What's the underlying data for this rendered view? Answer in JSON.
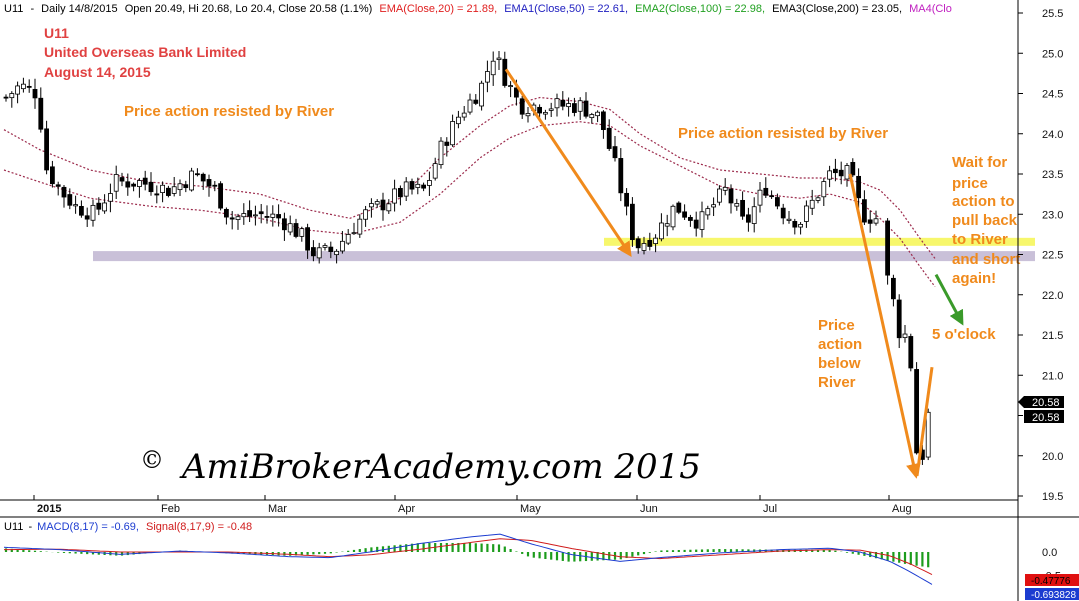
{
  "header": {
    "symbol": "U11",
    "interval": "Daily 14/8/2015",
    "ohlc": "Open 20.49, Hi 20.68, Lo 20.4, Close 20.58 (1.1%)",
    "ema20": "EMA(Close,20) = 21.89,",
    "ema50": "EMA1(Close,50) = 22.61,",
    "ema100": "EMA2(Close,100) = 22.98,",
    "ema200": "EMA3(Close,200) = 23.05,",
    "ma4": "MA4(Clo"
  },
  "title_block": {
    "ticker": "U11",
    "company": "United Overseas Bank Limited",
    "date": "August 14, 2015"
  },
  "annotations": {
    "a1": "Price action resisted by River",
    "a2": "Price action resisted by River",
    "a3": [
      "Price",
      "action",
      "below",
      "River"
    ],
    "a4": [
      "Wait for",
      "price",
      "action to",
      "pull back",
      "to River",
      "and short",
      "again!"
    ],
    "a5": "5 o'clock"
  },
  "watermark": {
    "copyright": "©",
    "text": "AmiBrokerAcademy.com   2015"
  },
  "macd_header": {
    "symbol": "U11",
    "macd": "MACD(8,17) = -0.69,",
    "signal": "Signal(8,17,9) = -0.48"
  },
  "price_labels": {
    "top": "20.58",
    "bottom": "20.58"
  },
  "macd_labels": {
    "signal": "-0.47776",
    "macd": "-0.693828"
  },
  "colors": {
    "header_ema20": "#e02020",
    "header_ema50": "#2020c0",
    "header_ema100": "#20a020",
    "header_ma4": "#c020c0",
    "annotation": "#f08a1c",
    "title": "#e04141",
    "river": "#9c2b4c",
    "support_band": "#c9c0d8",
    "yellow_band": "#f7f76c",
    "hist": "#1c9c1c",
    "macd_line": "#1c3cd0",
    "signal_line": "#d01c1c"
  },
  "chart_data": {
    "type": "candlestick",
    "y_axis_ticks": [
      25.5,
      25.0,
      24.5,
      24.0,
      23.5,
      23.0,
      22.5,
      22.0,
      21.5,
      21.0,
      20.5,
      20.0,
      19.5
    ],
    "ylim": [
      19.4,
      25.6
    ],
    "x_axis_labels": [
      "2015",
      "Feb",
      "Mar",
      "Apr",
      "May",
      "Jun",
      "Jul",
      "Aug"
    ],
    "levels": {
      "support": 22.48,
      "yellow_band_low": 22.62,
      "yellow_band_high": 22.67
    },
    "key_prices": {
      "april_high": 25.05,
      "june_low": 22.5,
      "aug_low": 19.68,
      "last_close": 20.58
    },
    "macd": {
      "y_axis_ticks": [
        0.0,
        -0.5
      ],
      "last_macd": -0.69,
      "last_signal": -0.48
    }
  }
}
